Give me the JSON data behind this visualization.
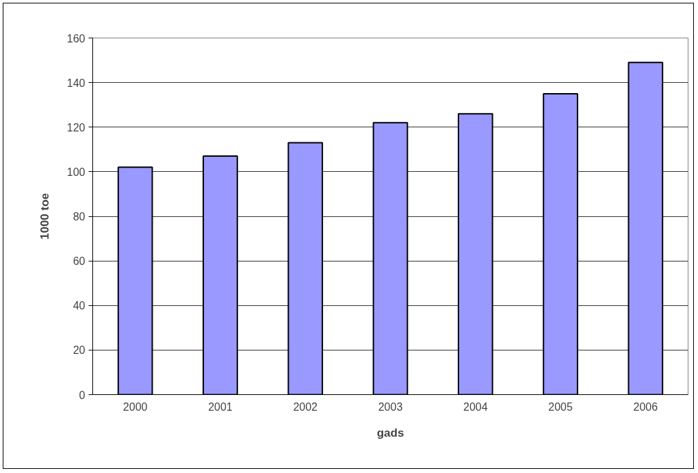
{
  "chart_data": {
    "type": "bar",
    "xlabel": "gads",
    "ylabel": "1000 toe",
    "categories": [
      "2000",
      "2001",
      "2002",
      "2003",
      "2004",
      "2005",
      "2006"
    ],
    "values": [
      102,
      107,
      113,
      122,
      126,
      135,
      149
    ],
    "color": "#9999ff",
    "ylim": [
      0,
      160
    ],
    "yticks": [
      0,
      20,
      40,
      60,
      80,
      100,
      120,
      140,
      160
    ],
    "grid": "y"
  }
}
